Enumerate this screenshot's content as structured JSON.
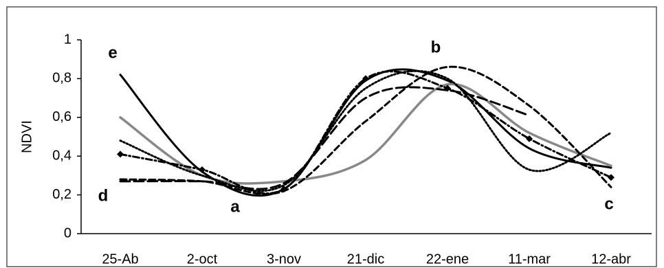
{
  "chart_data": {
    "type": "line",
    "y_label": "NDVI",
    "categories": [
      "25-Ab",
      "2-oct",
      "3-nov",
      "21-dic",
      "22-ene",
      "11-mar",
      "12-abr"
    ],
    "ylim": [
      0,
      1
    ],
    "yticks": [
      0,
      {
        "value": 0.2,
        "label": "0,2"
      },
      {
        "value": 0.4,
        "label": "0,4"
      },
      {
        "value": 0.6,
        "label": "0,6"
      },
      {
        "value": 0.8,
        "label": "0,8"
      },
      1
    ],
    "smooth": true,
    "series": [
      {
        "color": "#000000",
        "width": 3,
        "dash": "none",
        "values": [
          0.82,
          0.32,
          0.23,
          0.79,
          0.79,
          0.44,
          0.34
        ]
      },
      {
        "color": "#888888",
        "width": 3.5,
        "dash": "none",
        "values": [
          0.6,
          0.3,
          0.27,
          0.38,
          0.77,
          0.52,
          0.35
        ]
      },
      {
        "color": "#000000",
        "width": 3,
        "dash": "9,5",
        "values": [
          0.28,
          0.27,
          0.22,
          0.58,
          0.86,
          0.66,
          0.24
        ]
      },
      {
        "color": "#000000",
        "width": 3,
        "dash": "9,4,2,4",
        "marker": "diamond",
        "values": [
          0.41,
          0.33,
          0.23,
          0.8,
          0.75,
          0.49,
          0.29
        ]
      },
      {
        "color": "#000000",
        "width": 3,
        "dash": "2,3",
        "values": [
          0.48,
          0.3,
          0.25,
          0.75,
          0.8,
          0.33,
          0.52
        ]
      },
      {
        "color": "#000000",
        "width": 3,
        "dash": "14,6",
        "values": [
          0.27,
          0.27,
          0.26,
          0.7,
          0.74,
          0.61,
          null
        ]
      }
    ],
    "annotations": [
      "e",
      "b",
      "d",
      "a",
      "c"
    ]
  }
}
